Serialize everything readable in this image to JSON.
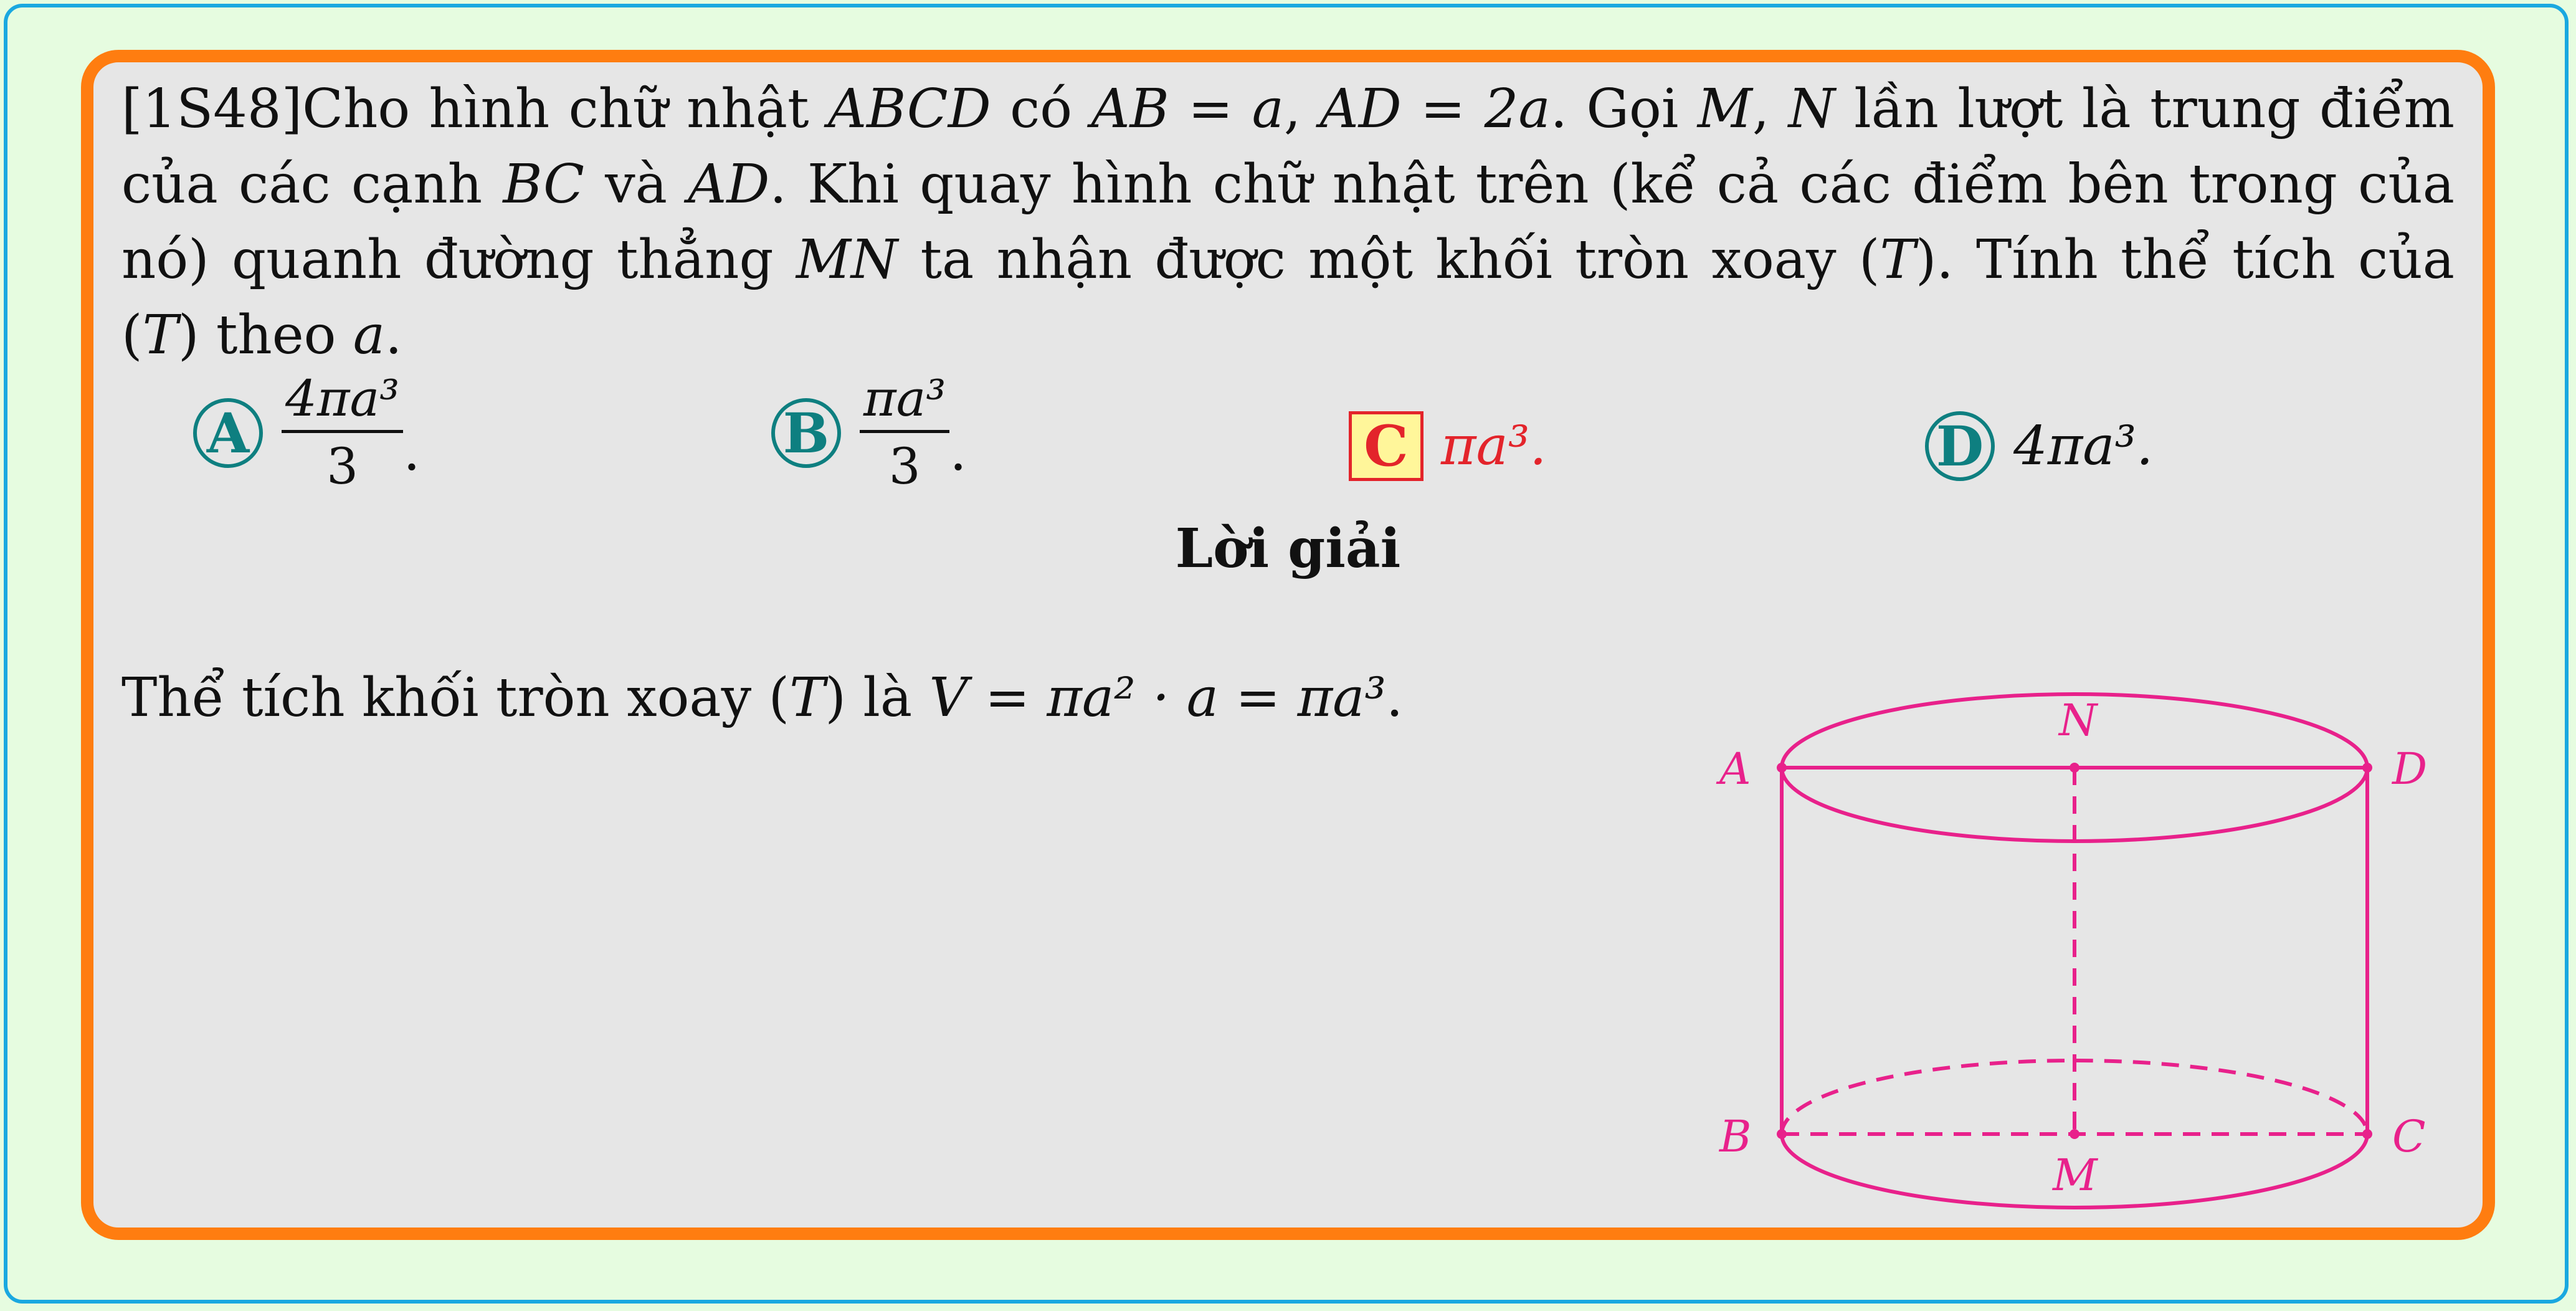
{
  "question": {
    "code": "[1S48]",
    "t1": "Cho hình chữ nhật ",
    "m1": "ABCD",
    "t2": " có ",
    "m2": "AB = a",
    "t3": ", ",
    "m3": "AD = 2a",
    "t4": ". Gọi ",
    "m4": "M",
    "t5": ", ",
    "m5": "N",
    "t6": " lần lượt là trung điểm của các cạnh ",
    "m6": "BC",
    "t7": " và ",
    "m7": "AD",
    "t8": ". Khi quay hình chữ nhật trên (kể cả các điểm bên trong của nó) quanh đường thẳng ",
    "m8": "MN",
    "t9": " ta nhận được một khối tròn xoay (",
    "m9": "T",
    "t10": "). Tính thể tích của (",
    "m10": "T",
    "t11": ") theo ",
    "m11": "a",
    "t12": "."
  },
  "options": [
    {
      "label": "A",
      "num": "4πa³",
      "den": "3",
      "suffix": "."
    },
    {
      "label": "B",
      "num": "πa³",
      "den": "3",
      "suffix": "."
    },
    {
      "label": "C",
      "text": "πa³.",
      "correct": true
    },
    {
      "label": "D",
      "text": "4πa³."
    }
  ],
  "solution_heading": "Lời giải",
  "solution": {
    "t1": "Thể tích khối tròn xoay (",
    "m1": "T",
    "t2": ") là ",
    "m2": "V = πa² · a = πa³",
    "t3": "."
  },
  "figure": {
    "color": "#e8218b",
    "points": {
      "A": "A",
      "B": "B",
      "C": "C",
      "D": "D",
      "M": "M",
      "N": "N"
    }
  },
  "colors": {
    "accent_border": "#ff7d10",
    "outer_border": "#1aa8e0",
    "option_circle": "#0e7f80",
    "correct": "#e3242b"
  }
}
